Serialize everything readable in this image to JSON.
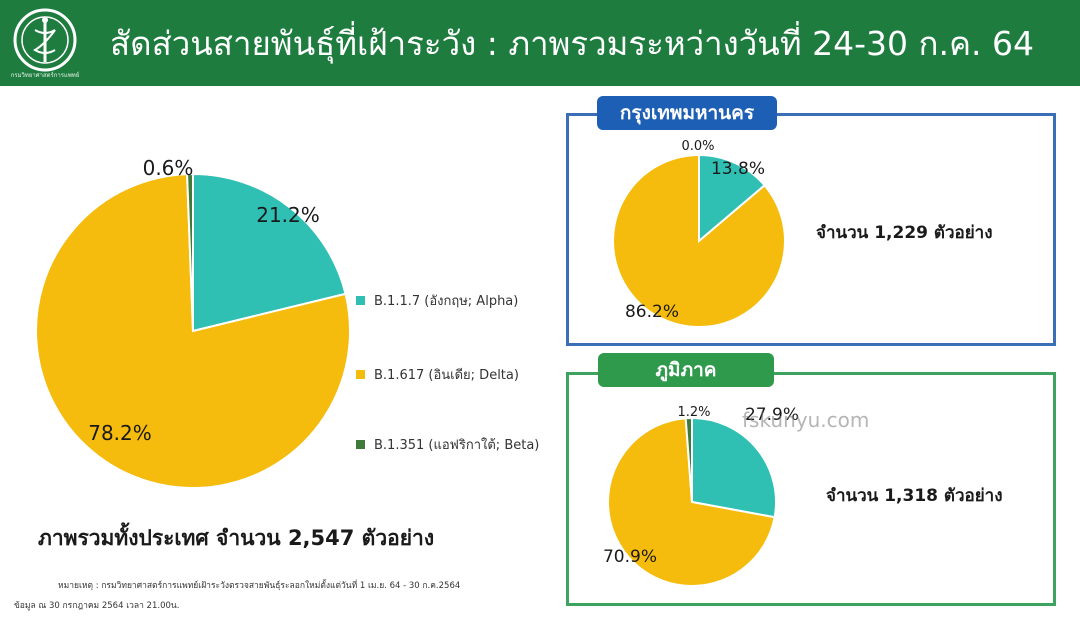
{
  "header": {
    "title": "สัดส่วนสายพันธุ์ที่เฝ้าระวัง : ภาพรวมระหว่างวันที่ 24-30 ก.ค. 64",
    "logo_text": "กรมวิทยาศาสตร์การแพทย์",
    "background": "#1e7c3f"
  },
  "colors": {
    "alpha": "#2fbfb3",
    "delta": "#f5bc0e",
    "beta": "#3f7a3a",
    "panel_blue": "#1d5fb5",
    "panel_green": "#2f9a4c"
  },
  "legend": {
    "alpha": "B.1.1.7 (อังกฤษ; Alpha)",
    "delta": "B.1.617 (อินเดีย; Delta)",
    "beta": "B.1.351 (แอฟริกาใต้; Beta)"
  },
  "summary": "ภาพรวมทั้งประเทศ จำนวน 2,547 ตัวอย่าง",
  "notes": {
    "line1": "หมายเหตุ : กรมวิทยาศาสตร์การแพทย์เฝ้าระวังตรวจสายพันธุ์ระลอกใหม่ตั้งแต่วันที่ 1 เม.ย. 64 - 30 ก.ค.2564",
    "line2": "ข้อมูล ณ 30 กรกฎาคม 2564 เวลา 21.00น."
  },
  "panels": {
    "bangkok": {
      "title": "กรุงเทพมหานคร",
      "sample": "จำนวน 1,229 ตัวอย่าง"
    },
    "region": {
      "title": "ภูมิภาค",
      "sample": "จำนวน 1,318 ตัวอย่าง"
    }
  },
  "watermark": "fskunyu.com",
  "chart_data": [
    {
      "type": "pie",
      "title": "ภาพรวมทั้งประเทศ",
      "series": [
        {
          "name": "B.1.1.7 (อังกฤษ; Alpha)",
          "value": 21.2,
          "label": "21.2%"
        },
        {
          "name": "B.1.617 (อินเดีย; Delta)",
          "value": 78.2,
          "label": "78.2%"
        },
        {
          "name": "B.1.351 (แอฟริกาใต้; Beta)",
          "value": 0.6,
          "label": "0.6%"
        }
      ]
    },
    {
      "type": "pie",
      "title": "กรุงเทพมหานคร",
      "series": [
        {
          "name": "B.1.1.7 (อังกฤษ; Alpha)",
          "value": 13.8,
          "label": "13.8%"
        },
        {
          "name": "B.1.617 (อินเดีย; Delta)",
          "value": 86.2,
          "label": "86.2%"
        },
        {
          "name": "B.1.351 (แอฟริกาใต้; Beta)",
          "value": 0.0,
          "label": "0.0%"
        }
      ]
    },
    {
      "type": "pie",
      "title": "ภูมิภาค",
      "series": [
        {
          "name": "B.1.1.7 (อังกฤษ; Alpha)",
          "value": 27.9,
          "label": "27.9%"
        },
        {
          "name": "B.1.617 (อินเดีย; Delta)",
          "value": 70.9,
          "label": "70.9%"
        },
        {
          "name": "B.1.351 (แอฟริกาใต้; Beta)",
          "value": 1.2,
          "label": "1.2%"
        }
      ]
    }
  ]
}
